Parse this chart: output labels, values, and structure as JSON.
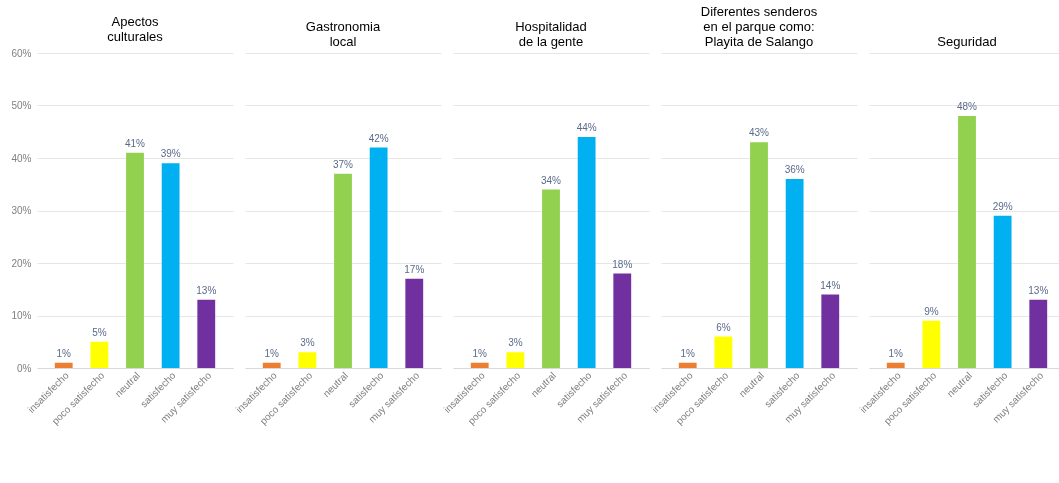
{
  "chart_data": [
    {
      "type": "bar",
      "title": "Apectos\nculturales",
      "categories": [
        "insatisfecho",
        "poco satisfecho",
        "neutral",
        "satisfecho",
        "muy satisfecho"
      ],
      "values": [
        1,
        5,
        41,
        39,
        13
      ],
      "value_labels": [
        "1%",
        "5%",
        "41%",
        "39%",
        "13%"
      ],
      "colors": [
        "#ed7d31",
        "#ffff00",
        "#92d050",
        "#00b0f0",
        "#7030a0"
      ],
      "ylim": [
        0,
        60
      ],
      "yticks": [
        {
          "value": 0,
          "label": "0%"
        },
        {
          "value": 10,
          "label": "10%"
        },
        {
          "value": 20,
          "label": "20%"
        },
        {
          "value": 30,
          "label": "30%"
        },
        {
          "value": 40,
          "label": "40%"
        },
        {
          "value": 50,
          "label": "50%"
        },
        {
          "value": 60,
          "label": "60%"
        }
      ],
      "grid": "y"
    },
    {
      "type": "bar",
      "title": "Gastronomia\nlocal",
      "categories": [
        "insatisfecho",
        "poco satisfecho",
        "neutral",
        "satisfecho",
        "muy satisfecho"
      ],
      "values": [
        1,
        3,
        37,
        42,
        17
      ],
      "value_labels": [
        "1%",
        "3%",
        "37%",
        "42%",
        "17%"
      ],
      "colors": [
        "#ed7d31",
        "#ffff00",
        "#92d050",
        "#00b0f0",
        "#7030a0"
      ],
      "ylim": [
        0,
        60
      ],
      "grid": "y",
      "tick_labels": "x"
    },
    {
      "type": "bar",
      "title": "Hospitalidad\nde la gente",
      "categories": [
        "insatisfecho",
        "poco satisfecho",
        "neutral",
        "satisfecho",
        "muy satisfecho"
      ],
      "values": [
        1,
        3,
        34,
        44,
        18
      ],
      "value_labels": [
        "1%",
        "3%",
        "34%",
        "44%",
        "18%"
      ],
      "colors": [
        "#ed7d31",
        "#ffff00",
        "#92d050",
        "#00b0f0",
        "#7030a0"
      ],
      "ylim": [
        0,
        60
      ],
      "grid": "y",
      "tick_labels": "x"
    },
    {
      "type": "bar",
      "title": "Diferentes senderos\nen el parque como:\nPlayita de Salango",
      "categories": [
        "insatisfecho",
        "poco satisfecho",
        "neutral",
        "satisfecho",
        "muy satisfecho"
      ],
      "values": [
        1,
        6,
        43,
        36,
        14
      ],
      "value_labels": [
        "1%",
        "6%",
        "43%",
        "36%",
        "14%"
      ],
      "colors": [
        "#ed7d31",
        "#ffff00",
        "#92d050",
        "#00b0f0",
        "#7030a0"
      ],
      "ylim": [
        0,
        60
      ],
      "grid": "y",
      "tick_labels": "x"
    },
    {
      "type": "bar",
      "title": "Seguridad",
      "categories": [
        "insatisfecho",
        "poco satisfecho",
        "neutral",
        "satisfecho",
        "muy satisfecho"
      ],
      "values": [
        1,
        9,
        48,
        29,
        13
      ],
      "value_labels": [
        "1%",
        "9%",
        "48%",
        "29%",
        "13%"
      ],
      "colors": [
        "#ed7d31",
        "#ffff00",
        "#92d050",
        "#00b0f0",
        "#7030a0"
      ],
      "ylim": [
        0,
        60
      ],
      "grid": "y",
      "tick_labels": "x"
    }
  ]
}
